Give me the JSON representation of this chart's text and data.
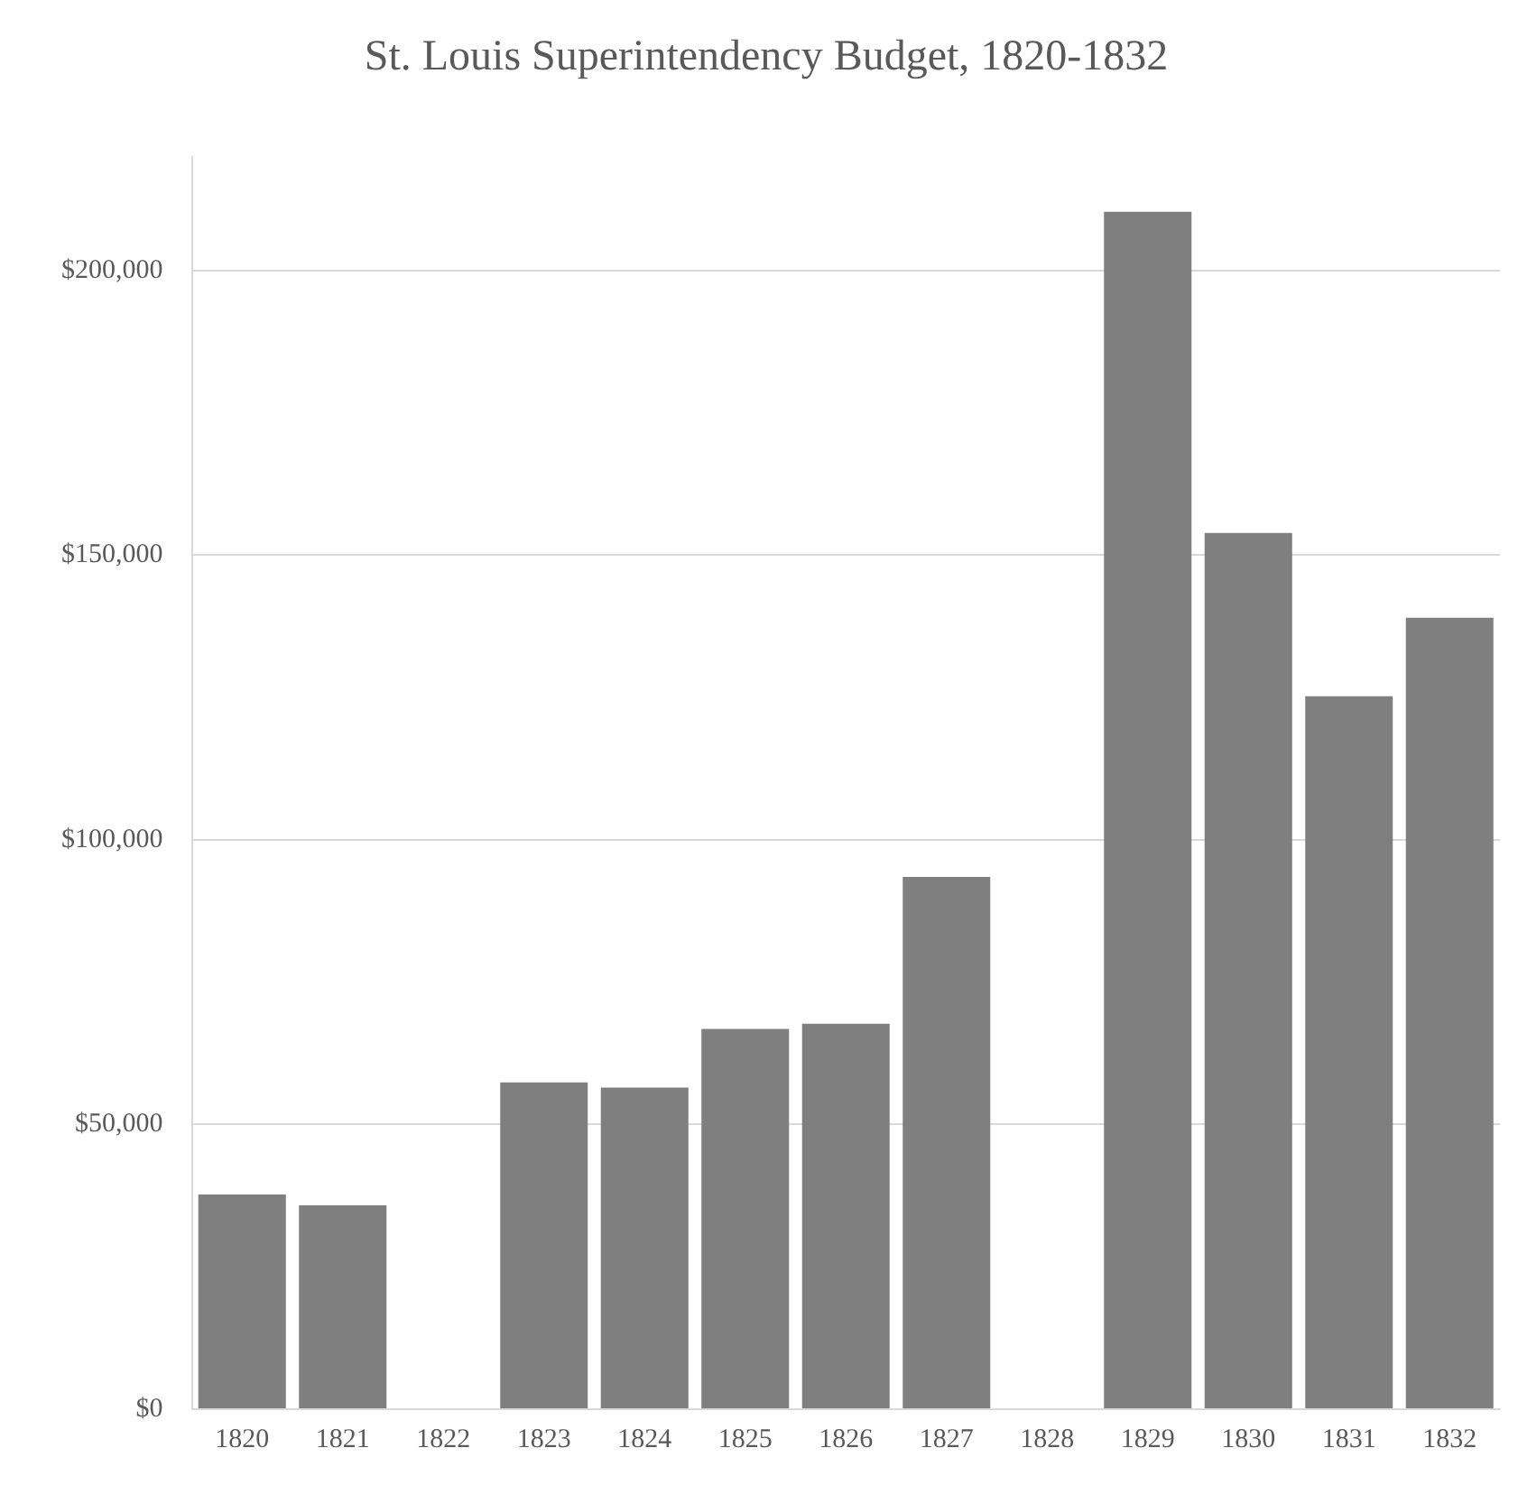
{
  "chart_data": {
    "type": "bar",
    "title": "St. Louis Superintendency Budget, 1820-1832",
    "categories": [
      "1820",
      "1821",
      "1822",
      "1823",
      "1824",
      "1825",
      "1826",
      "1827",
      "1828",
      "1829",
      "1830",
      "1831",
      "1832"
    ],
    "values": [
      37700,
      35800,
      null,
      57400,
      56500,
      66800,
      67700,
      93500,
      null,
      210300,
      153900,
      125200,
      139000
    ],
    "color": "#7f7f7f",
    "ylim": [
      0,
      220000
    ],
    "yticks": [
      {
        "value": 0,
        "label": "$0"
      },
      {
        "value": 50000,
        "label": "$50,000"
      },
      {
        "value": 100000,
        "label": "$100,000"
      },
      {
        "value": 150000,
        "label": "$150,000"
      },
      {
        "value": 200000,
        "label": "$200,000"
      }
    ],
    "grid": "y"
  }
}
